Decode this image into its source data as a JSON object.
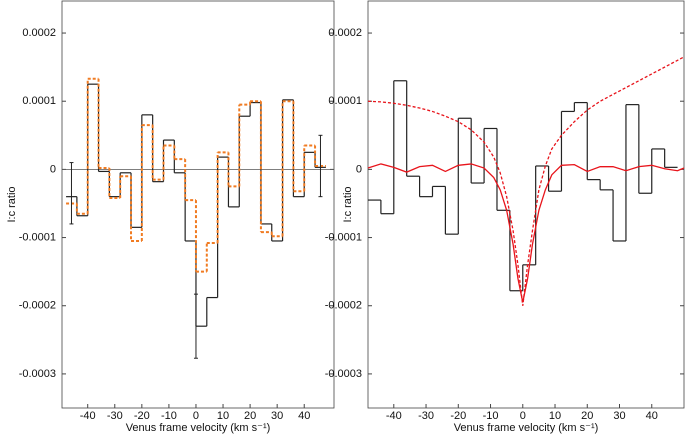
{
  "chart_data": [
    {
      "type": "histogram",
      "xlabel": "Venus frame velocity (km s⁻¹)",
      "ylabel": "I:c ratio",
      "xlim": [
        -49.5,
        51
      ],
      "xticks": [
        -40,
        -30,
        -20,
        -10,
        0,
        10,
        20,
        30,
        40
      ],
      "ylim": [
        -0.00035,
        0.000247
      ],
      "yticks": [
        0.0002,
        0.0001,
        0,
        -0.0001,
        -0.0002,
        -0.0003
      ],
      "zero_line": true,
      "bins": [
        -48,
        -44,
        -40,
        -36,
        -32,
        -28,
        -24,
        -20,
        -16,
        -12,
        -8,
        -4,
        0,
        4,
        8,
        12,
        16,
        20,
        24,
        28,
        32,
        36,
        40,
        44,
        48
      ],
      "series": [
        {
          "color": "#222222",
          "dash": false,
          "values": [
            -4e-05,
            -6.8e-05,
            0.000125,
            -3e-06,
            -4e-05,
            -5e-06,
            -8.5e-05,
            8e-05,
            -1.8e-05,
            4.3e-05,
            -5e-06,
            -0.000105,
            -0.00023,
            -0.000188,
            1.8e-05,
            -5.5e-05,
            7.8e-05,
            9.8e-05,
            -8e-05,
            -0.000105,
            0.000102,
            -4e-05,
            2.5e-05,
            3e-06
          ]
        },
        {
          "color": "#f07b22",
          "dash": true,
          "values": [
            -5e-05,
            -6.5e-05,
            0.000133,
            2e-06,
            -4.2e-05,
            -1e-05,
            -0.000105,
            6.5e-05,
            -1.5e-05,
            3.5e-05,
            1.5e-05,
            -4.5e-05,
            -0.00015,
            -0.000108,
            2.5e-05,
            -2.5e-05,
            9.5e-05,
            0.0001,
            -9.2e-05,
            -9.8e-05,
            0.0001,
            -3.2e-05,
            3.5e-05,
            5e-06
          ]
        }
      ],
      "errorbars": {
        "color": "#222222",
        "x": [
          -46,
          0,
          46
        ],
        "values": [
          -3.5e-05,
          -0.00023,
          5e-06
        ],
        "errors": [
          4.5e-05,
          4.7e-05,
          4.5e-05
        ]
      }
    },
    {
      "type": "histogram",
      "xlabel": "Venus frame velocity (km s⁻¹)",
      "ylabel": "I:c ratio",
      "xlim": [
        -48,
        50
      ],
      "xticks": [
        -40,
        -30,
        -20,
        -10,
        0,
        10,
        20,
        30,
        40
      ],
      "ylim": [
        -0.00035,
        0.000247
      ],
      "yticks": [
        0.0002,
        0.0001,
        0,
        -0.0001,
        -0.0002,
        -0.0003
      ],
      "zero_line": false,
      "bins": [
        -48,
        -44,
        -40,
        -36,
        -32,
        -28,
        -24,
        -20,
        -16,
        -12,
        -8,
        -4,
        0,
        4,
        8,
        12,
        16,
        20,
        24,
        28,
        32,
        36,
        40,
        44,
        48
      ],
      "series": [
        {
          "color": "#222222",
          "dash": false,
          "values": [
            -4.5e-05,
            -6.5e-05,
            0.00013,
            -1e-05,
            -4e-05,
            -2.5e-05,
            -9.5e-05,
            7.5e-05,
            -2e-05,
            6e-05,
            -6e-05,
            -0.000178,
            -0.00014,
            5e-06,
            -3.2e-05,
            8.5e-05,
            9.8e-05,
            -1.5e-05,
            -3e-05,
            -0.000105,
            9.5e-05,
            -3.5e-05,
            3e-05,
            3e-06
          ]
        }
      ],
      "lines": [
        {
          "color": "#e8141b",
          "dash": false,
          "x": [
            -48,
            -44,
            -40,
            -36,
            -32,
            -28,
            -24,
            -20,
            -16,
            -12,
            -9,
            -7,
            -5,
            -3,
            -1.5,
            0,
            1.5,
            3,
            5,
            7,
            9,
            12,
            16,
            20,
            24,
            28,
            32,
            36,
            40,
            44,
            48,
            50
          ],
          "values": [
            2e-06,
            8e-06,
            3e-06,
            -4e-06,
            4e-06,
            6e-06,
            -3e-06,
            6e-06,
            8e-06,
            2e-06,
            -1.2e-05,
            -3e-05,
            -6e-05,
            -0.00011,
            -0.00016,
            -0.000195,
            -0.00016,
            -0.00011,
            -6e-05,
            -3e-05,
            -8e-06,
            6e-06,
            7e-06,
            -3e-06,
            4e-06,
            4e-06,
            -2e-06,
            4e-06,
            6e-06,
            1e-06,
            -2e-06,
            2e-06
          ]
        },
        {
          "color": "#e8141b",
          "dash": true,
          "x": [
            -48,
            -44,
            -40,
            -36,
            -32,
            -28,
            -24,
            -20,
            -16,
            -12,
            -9,
            -7,
            -5,
            -3,
            -1.5,
            0,
            1.5,
            3,
            5,
            7,
            9,
            12,
            16,
            20,
            24,
            28,
            32,
            36,
            40,
            44,
            48,
            50
          ],
          "values": [
            0.0001,
            9.9e-05,
            9.7e-05,
            9.4e-05,
            9e-05,
            8.5e-05,
            7.8e-05,
            7e-05,
            5.8e-05,
            4e-05,
            1.8e-05,
            -5e-06,
            -4e-05,
            -9e-05,
            -0.00014,
            -0.0002,
            -0.00014,
            -9e-05,
            -3e-05,
            5e-06,
            3e-05,
            5e-05,
            7e-05,
            8.7e-05,
            0.0001,
            0.00011,
            0.00012,
            0.00013,
            0.00014,
            0.00015,
            0.00016,
            0.000165
          ]
        }
      ]
    }
  ]
}
